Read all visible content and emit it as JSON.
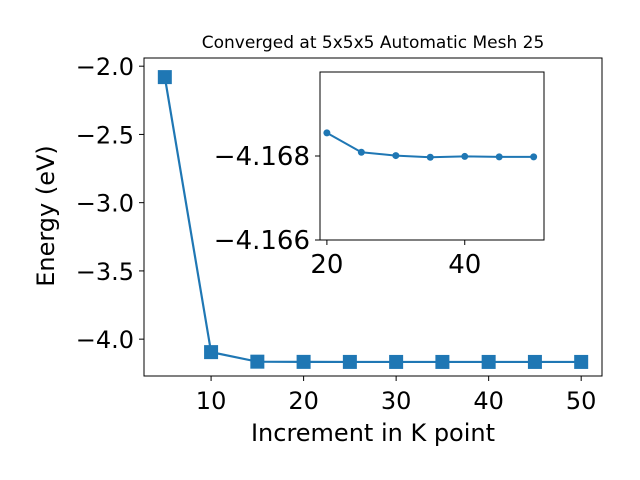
{
  "chart_data": [
    {
      "type": "line",
      "title": "Converged at 5x5x5 Automatic Mesh 25",
      "xlabel": "Increment in K point",
      "ylabel": "Energy (eV)",
      "x": [
        5,
        10,
        15,
        20,
        25,
        30,
        35,
        40,
        45,
        50
      ],
      "series": [
        {
          "values": [
            -2.08,
            -4.095,
            -4.165,
            -4.1665,
            -4.1668,
            -4.1669,
            -4.1669,
            -4.1669,
            -4.1669,
            -4.1669
          ],
          "color": "#1f77b4",
          "marker": "square"
        }
      ],
      "xlim": [
        2.75,
        52.25
      ],
      "ylim": [
        -4.27,
        -1.94
      ],
      "xticks": [
        10,
        20,
        30,
        40,
        50
      ],
      "xtick_labels": [
        "10",
        "20",
        "30",
        "40",
        "50"
      ],
      "yticks": [
        -2.0,
        -2.5,
        -3.0,
        -3.5,
        -4.0
      ],
      "ytick_labels": [
        "−2.0",
        "−2.5",
        "−3.0",
        "−3.5",
        "−4.0"
      ],
      "grid": false
    },
    {
      "type": "line",
      "title": "",
      "xlabel": "",
      "ylabel": "",
      "x": [
        20,
        25,
        30,
        35,
        40,
        45,
        50
      ],
      "series": [
        {
          "values": [
            -4.16855,
            -4.16809,
            -4.16801,
            -4.16797,
            -4.16799,
            -4.16798,
            -4.16798
          ],
          "color": "#1f77b4",
          "marker": "circle"
        }
      ],
      "xlim": [
        19.0,
        51.5
      ],
      "ylim": [
        -4.166,
        -4.17
      ],
      "y_inverted": true,
      "xticks": [
        20,
        40
      ],
      "xtick_labels": [
        "20",
        "40"
      ],
      "yticks": [
        -4.168,
        -4.166
      ],
      "ytick_labels": [
        "−4.168",
        "−4.166"
      ],
      "grid": false
    }
  ]
}
